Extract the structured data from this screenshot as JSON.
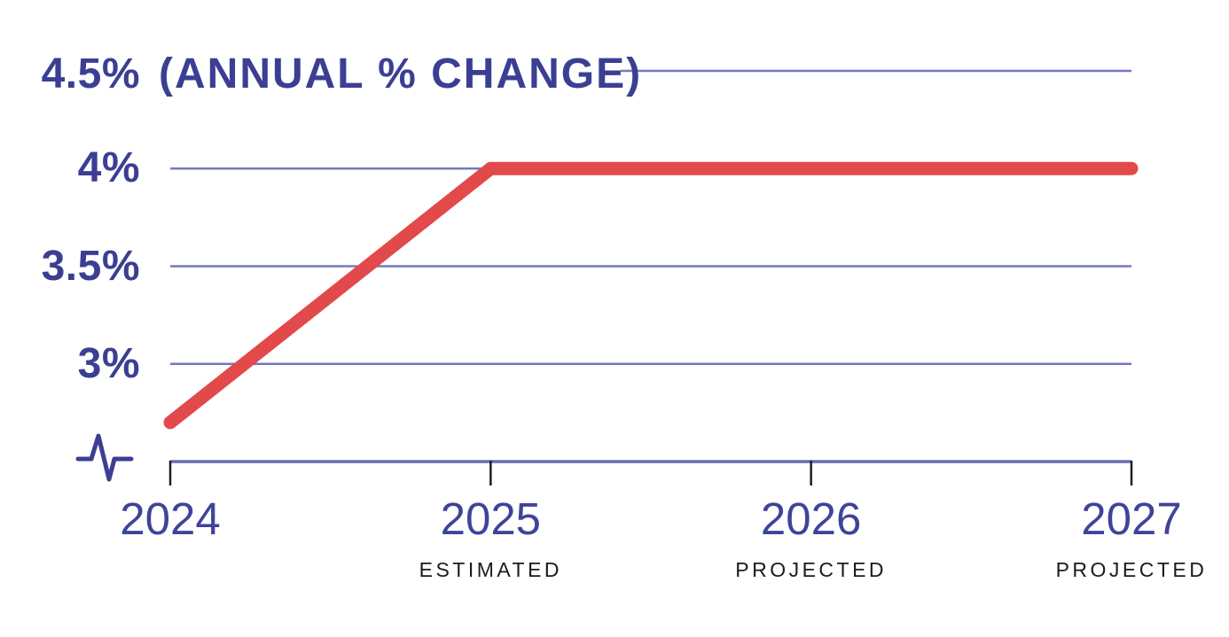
{
  "chart_data": {
    "type": "line",
    "title": "(ANNUAL % CHANGE)",
    "categories": [
      "2024",
      "2025",
      "2026",
      "2027"
    ],
    "category_sublabels": [
      "",
      "ESTIMATED",
      "PROJECTED",
      "PROJECTED"
    ],
    "values": [
      2.7,
      4.0,
      4.0,
      4.0
    ],
    "y_ticks": [
      {
        "value": 4.5,
        "label": "4.5%"
      },
      {
        "value": 4.0,
        "label": "4%"
      },
      {
        "value": 3.5,
        "label": "3.5%"
      },
      {
        "value": 3.0,
        "label": "3%"
      }
    ],
    "ylim": [
      2.5,
      4.5
    ],
    "y_axis_break": true,
    "grid": "horizontal",
    "legend": "none",
    "colors": {
      "line": "#e2494b",
      "grid": "#7478c1",
      "axis": "#686db3",
      "tick": "#1f1f1f",
      "label_primary": "#3b3f93",
      "label_year": "#3e4499",
      "sublabel": "#1b1b1b",
      "background": "#ffffff"
    }
  }
}
